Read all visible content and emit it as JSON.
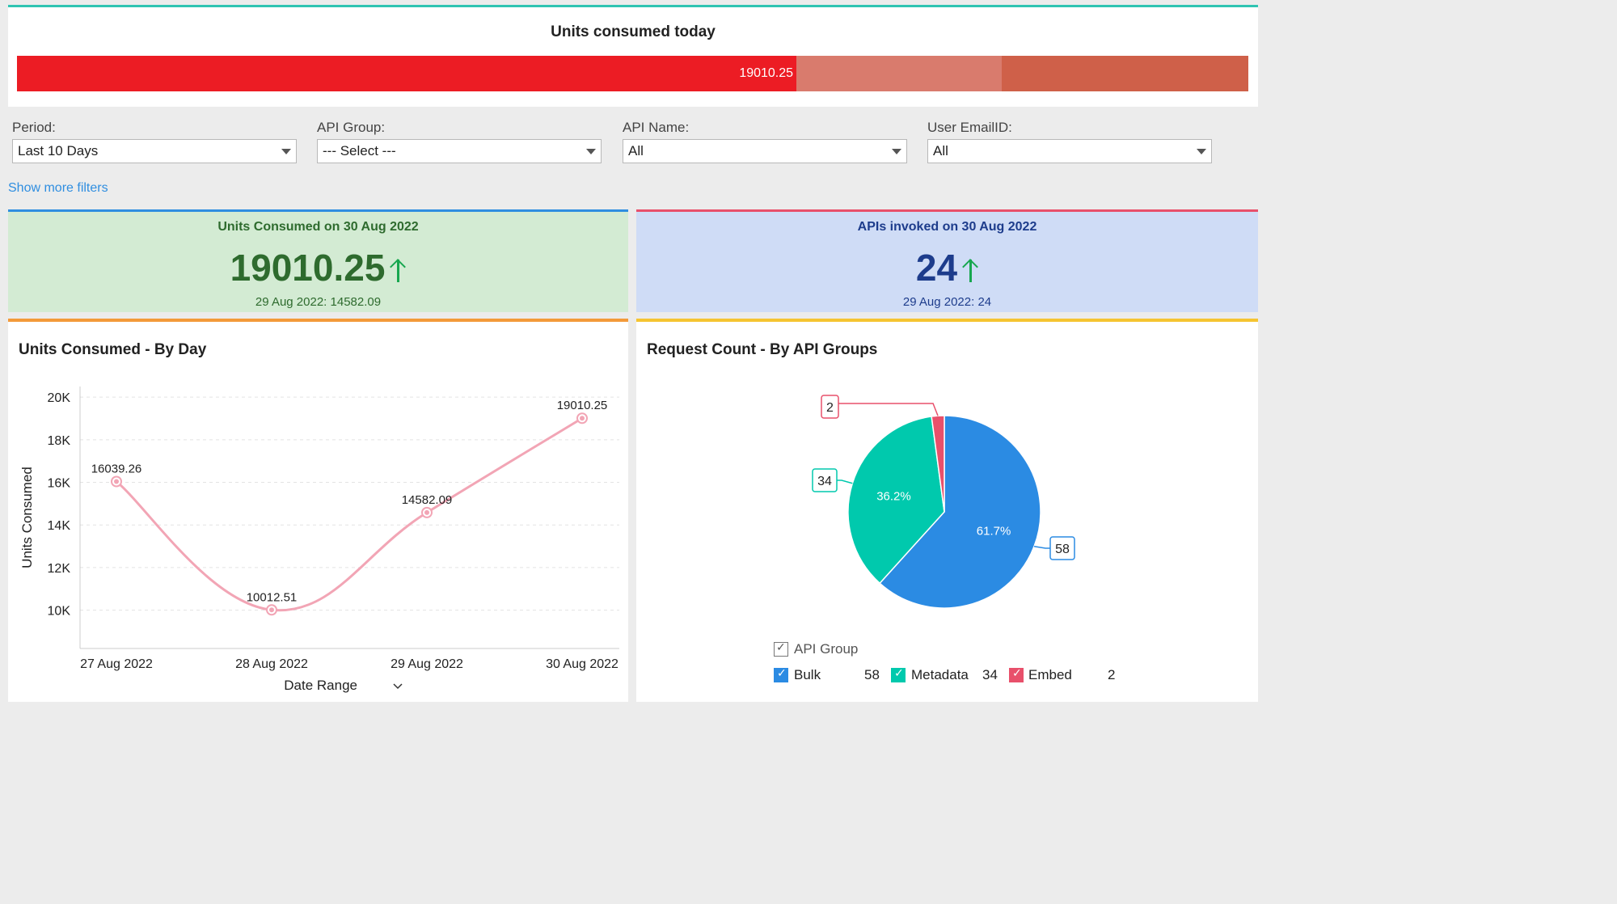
{
  "gauge": {
    "title": "Units consumed today",
    "value_label": "19010.25",
    "value_fraction": 0.633,
    "bands": [
      {
        "to_fraction": 0.633,
        "color": "#ec1c24"
      },
      {
        "to_fraction": 0.8,
        "color": "#d97b6d"
      },
      {
        "to_fraction": 1.0,
        "color": "#cf6049"
      }
    ]
  },
  "filters": [
    {
      "label": "Period:",
      "value": "Last 10 Days"
    },
    {
      "label": "API Group:",
      "value": "--- Select ---"
    },
    {
      "label": "API Name:",
      "value": "All"
    },
    {
      "label": "User EmailID:",
      "value": "All"
    }
  ],
  "show_more_filters": "Show more filters",
  "kpi_units": {
    "title": "Units Consumed on 30 Aug 2022",
    "value": "19010.25",
    "sub": "29 Aug 2022: 14582.09",
    "trend": "up"
  },
  "kpi_apis": {
    "title": "APIs invoked on 30 Aug 2022",
    "value": "24",
    "sub": "29 Aug 2022: 24",
    "trend": "up"
  },
  "colors": {
    "teal": "#2fc4b2",
    "blue": "#2f8ee0",
    "red": "#e8506b",
    "orange": "#f39a3a",
    "yellow": "#f5c431",
    "green_text": "#2e6b2e",
    "navy_text": "#1d3c8c",
    "kpi_green_bg": "#d3ebd3",
    "kpi_blue_bg": "#cfdcf6",
    "line": "#f2a5b5"
  },
  "chart_data": [
    {
      "type": "line",
      "title": "Units Consumed - By Day",
      "xlabel": "Date Range",
      "ylabel": "Units Consumed",
      "categories": [
        "27 Aug 2022",
        "28 Aug 2022",
        "29 Aug 2022",
        "30 Aug 2022"
      ],
      "values": [
        16039.26,
        10012.51,
        14582.09,
        19010.25
      ],
      "value_labels": [
        "16039.26",
        "10012.51",
        "14582.09",
        "19010.25"
      ],
      "yticks": [
        "10K",
        "12K",
        "14K",
        "16K",
        "18K",
        "20K"
      ],
      "ylim": [
        8200,
        20500
      ],
      "grid": true
    },
    {
      "type": "pie",
      "title": "Request Count - By API Groups",
      "legend_title": "API Group",
      "slices": [
        {
          "name": "Bulk",
          "value": 58,
          "percent": "61.7%",
          "color": "#2b8be3"
        },
        {
          "name": "Metadata",
          "value": 34,
          "percent": "36.2%",
          "color": "#00c9ad"
        },
        {
          "name": "Embed",
          "value": 2,
          "percent": "",
          "color": "#e8506b"
        }
      ],
      "legend_placement": "bottom"
    }
  ]
}
